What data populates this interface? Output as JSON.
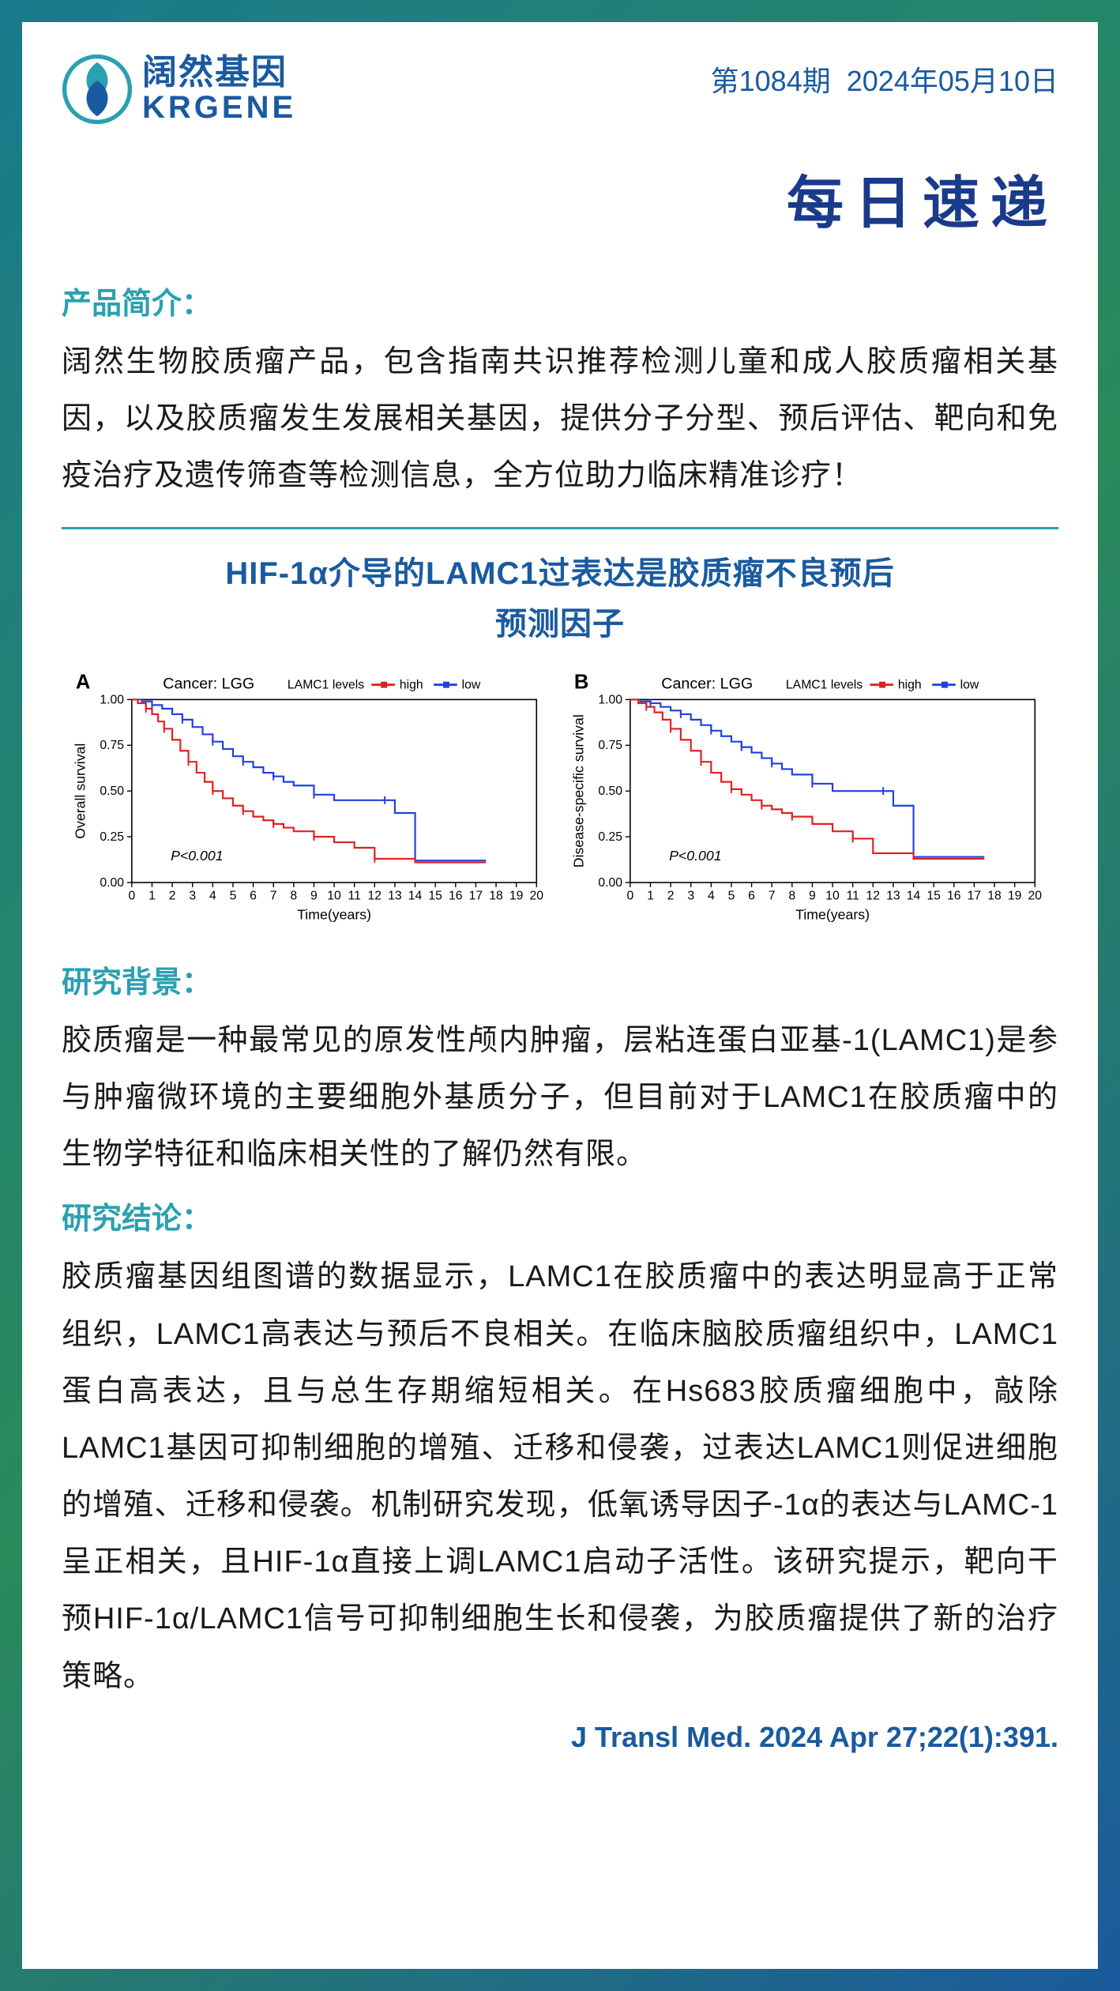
{
  "header": {
    "logo_cn": "阔然基因",
    "logo_en": "KRGENE",
    "issue_prefix": "第",
    "issue_number": "1084",
    "issue_suffix": "期",
    "date_year": "2024",
    "date_y_char": "年",
    "date_month": "05",
    "date_m_char": "月",
    "date_day": "10",
    "date_d_char": "日",
    "daily_title": "每日速递"
  },
  "intro": {
    "label": "产品简介：",
    "text": "阔然生物胶质瘤产品，包含指南共识推荐检测儿童和成人胶质瘤相关基因，以及胶质瘤发生发展相关基因，提供分子分型、预后评估、靶向和免疫治疗及遗传筛查等检测信息，全方位助力临床精准诊疗！"
  },
  "article": {
    "title_line1": "HIF-1α介导的LAMC1过表达是胶质瘤不良预后",
    "title_line2": "预测因子"
  },
  "charts": {
    "common": {
      "cancer_label": "Cancer: LGG",
      "legend_label": "LAMC1 levels",
      "legend_high": "high",
      "legend_low": "low",
      "pvalue": "P<0.001",
      "xlabel": "Time(years)",
      "xticks": [
        0,
        1,
        2,
        3,
        4,
        5,
        6,
        7,
        8,
        9,
        10,
        11,
        12,
        13,
        14,
        15,
        16,
        17,
        18,
        19,
        20
      ],
      "yticks": [
        0.0,
        0.25,
        0.5,
        0.75,
        1.0
      ],
      "high_color": "#e02020",
      "low_color": "#2040e0",
      "axis_color": "#000000",
      "bg_color": "#ffffff",
      "tick_fontsize": 16,
      "label_fontsize": 18,
      "title_fontsize": 20,
      "line_width": 2.2
    },
    "A": {
      "panel": "A",
      "ylabel": "Overall survival",
      "high_xy": [
        [
          0,
          1.0
        ],
        [
          0.3,
          0.98
        ],
        [
          0.7,
          0.95
        ],
        [
          1.0,
          0.92
        ],
        [
          1.3,
          0.88
        ],
        [
          1.6,
          0.84
        ],
        [
          2.0,
          0.78
        ],
        [
          2.4,
          0.72
        ],
        [
          2.8,
          0.66
        ],
        [
          3.2,
          0.6
        ],
        [
          3.6,
          0.55
        ],
        [
          4.0,
          0.5
        ],
        [
          4.5,
          0.46
        ],
        [
          5.0,
          0.42
        ],
        [
          5.5,
          0.39
        ],
        [
          6.0,
          0.36
        ],
        [
          6.5,
          0.34
        ],
        [
          7.0,
          0.32
        ],
        [
          7.5,
          0.3
        ],
        [
          8.0,
          0.28
        ],
        [
          9.0,
          0.25
        ],
        [
          10.0,
          0.22
        ],
        [
          11.0,
          0.19
        ],
        [
          12.0,
          0.13
        ],
        [
          13.5,
          0.13
        ],
        [
          14.0,
          0.11
        ],
        [
          17.5,
          0.11
        ]
      ],
      "low_xy": [
        [
          0,
          1.0
        ],
        [
          0.5,
          0.99
        ],
        [
          1.0,
          0.97
        ],
        [
          1.5,
          0.95
        ],
        [
          2.0,
          0.92
        ],
        [
          2.5,
          0.89
        ],
        [
          3.0,
          0.85
        ],
        [
          3.5,
          0.81
        ],
        [
          4.0,
          0.77
        ],
        [
          4.5,
          0.73
        ],
        [
          5.0,
          0.69
        ],
        [
          5.5,
          0.66
        ],
        [
          6.0,
          0.63
        ],
        [
          6.5,
          0.6
        ],
        [
          7.0,
          0.58
        ],
        [
          7.5,
          0.55
        ],
        [
          8.0,
          0.53
        ],
        [
          9.0,
          0.48
        ],
        [
          10.0,
          0.45
        ],
        [
          11.0,
          0.45
        ],
        [
          12.5,
          0.45
        ],
        [
          13.0,
          0.38
        ],
        [
          14.0,
          0.12
        ],
        [
          17.5,
          0.12
        ]
      ]
    },
    "B": {
      "panel": "B",
      "ylabel": "Disease-specific survival",
      "high_xy": [
        [
          0,
          1.0
        ],
        [
          0.4,
          0.98
        ],
        [
          0.8,
          0.96
        ],
        [
          1.2,
          0.93
        ],
        [
          1.6,
          0.89
        ],
        [
          2.0,
          0.84
        ],
        [
          2.5,
          0.78
        ],
        [
          3.0,
          0.72
        ],
        [
          3.5,
          0.66
        ],
        [
          4.0,
          0.6
        ],
        [
          4.5,
          0.55
        ],
        [
          5.0,
          0.51
        ],
        [
          5.5,
          0.48
        ],
        [
          6.0,
          0.45
        ],
        [
          6.5,
          0.42
        ],
        [
          7.0,
          0.4
        ],
        [
          7.5,
          0.38
        ],
        [
          8.0,
          0.36
        ],
        [
          9.0,
          0.32
        ],
        [
          10.0,
          0.28
        ],
        [
          11.0,
          0.24
        ],
        [
          12.0,
          0.16
        ],
        [
          13.5,
          0.16
        ],
        [
          14.0,
          0.13
        ],
        [
          17.5,
          0.13
        ]
      ],
      "low_xy": [
        [
          0,
          1.0
        ],
        [
          0.5,
          0.99
        ],
        [
          1.0,
          0.98
        ],
        [
          1.5,
          0.96
        ],
        [
          2.0,
          0.94
        ],
        [
          2.5,
          0.92
        ],
        [
          3.0,
          0.89
        ],
        [
          3.5,
          0.86
        ],
        [
          4.0,
          0.83
        ],
        [
          4.5,
          0.8
        ],
        [
          5.0,
          0.77
        ],
        [
          5.5,
          0.74
        ],
        [
          6.0,
          0.71
        ],
        [
          6.5,
          0.68
        ],
        [
          7.0,
          0.65
        ],
        [
          7.5,
          0.62
        ],
        [
          8.0,
          0.59
        ],
        [
          9.0,
          0.54
        ],
        [
          10.0,
          0.5
        ],
        [
          11.0,
          0.5
        ],
        [
          12.5,
          0.5
        ],
        [
          13.0,
          0.42
        ],
        [
          14.0,
          0.14
        ],
        [
          17.5,
          0.14
        ]
      ]
    }
  },
  "background": {
    "label": "研究背景：",
    "text": "胶质瘤是一种最常见的原发性颅内肿瘤，层粘连蛋白亚基-1(LAMC1)是参与肿瘤微环境的主要细胞外基质分子，但目前对于LAMC1在胶质瘤中的生物学特征和临床相关性的了解仍然有限。"
  },
  "conclusion": {
    "label": "研究结论：",
    "text": "胶质瘤基因组图谱的数据显示，LAMC1在胶质瘤中的表达明显高于正常组织，LAMC1高表达与预后不良相关。在临床脑胶质瘤组织中，LAMC1蛋白高表达，且与总生存期缩短相关。在Hs683胶质瘤细胞中，敲除LAMC1基因可抑制细胞的增殖、迁移和侵袭，过表达LAMC1则促进细胞的增殖、迁移和侵袭。机制研究发现，低氧诱导因子-1α的表达与LAMC-1呈正相关，且HIF-1α直接上调LAMC1启动子活性。该研究提示，靶向干预HIF-1α/LAMC1信号可抑制细胞生长和侵袭，为胶质瘤提供了新的治疗策略。"
  },
  "citation": "J Transl Med. 2024 Apr 27;22(1):391."
}
